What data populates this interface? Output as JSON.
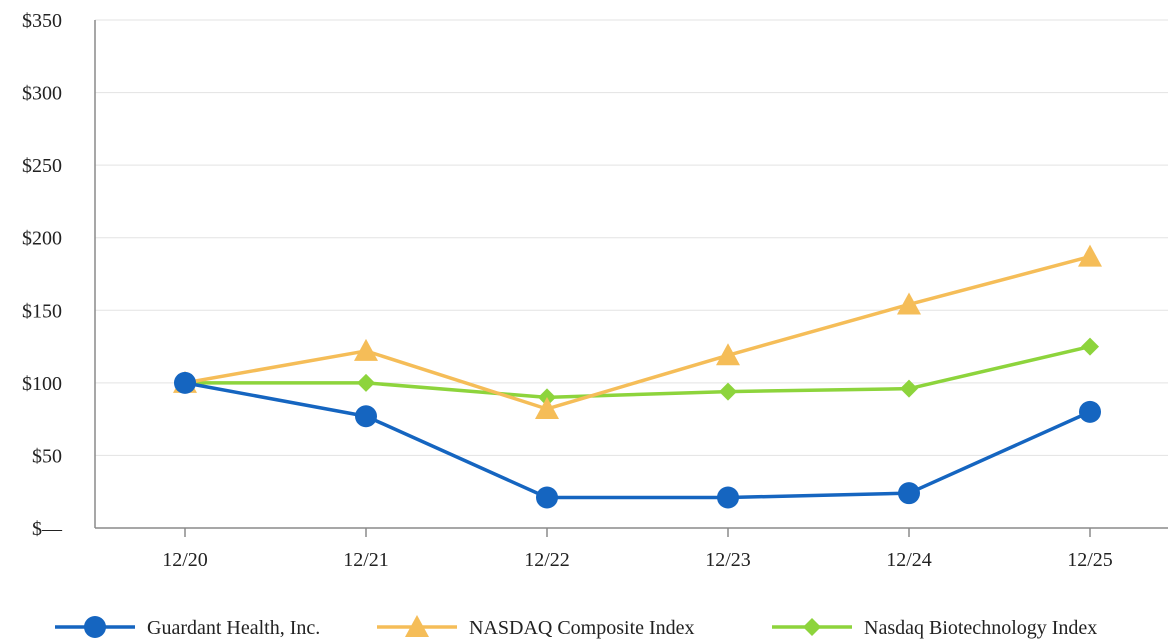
{
  "chart_data": {
    "type": "line",
    "title": "",
    "xlabel": "",
    "ylabel": "",
    "categories": [
      "12/20",
      "12/21",
      "12/22",
      "12/23",
      "12/24",
      "12/25"
    ],
    "ylim": [
      0,
      350
    ],
    "yticks": [
      {
        "value": 0,
        "label": "$—"
      },
      {
        "value": 50,
        "label": "$50"
      },
      {
        "value": 100,
        "label": "$100"
      },
      {
        "value": 150,
        "label": "$150"
      },
      {
        "value": 200,
        "label": "$200"
      },
      {
        "value": 250,
        "label": "$250"
      },
      {
        "value": 300,
        "label": "$300"
      },
      {
        "value": 350,
        "label": "$350"
      }
    ],
    "grid": "horizontal",
    "legend_position": "bottom",
    "series": [
      {
        "name": "Guardant Health, Inc.",
        "color": "#1565c0",
        "marker": "circle",
        "values": [
          100,
          77,
          21,
          21,
          24,
          80
        ]
      },
      {
        "name": "NASDAQ Composite Index",
        "color": "#f5bd58",
        "marker": "triangle",
        "values": [
          100,
          122,
          82,
          119,
          154,
          187
        ]
      },
      {
        "name": "Nasdaq Biotechnology Index",
        "color": "#8dd43c",
        "marker": "diamond",
        "values": [
          100,
          100,
          90,
          94,
          96,
          125
        ]
      }
    ]
  }
}
